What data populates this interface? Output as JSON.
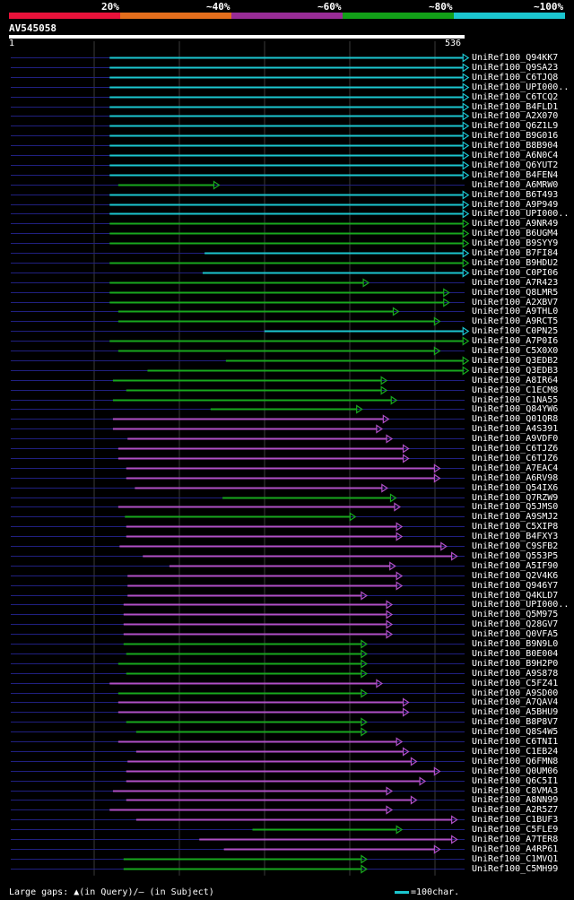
{
  "legend": {
    "segments": [
      {
        "label": "20%",
        "color": "#e8123a"
      },
      {
        "label": "~40%",
        "color": "#e46e1c"
      },
      {
        "label": "~60%",
        "color": "#982c96"
      },
      {
        "label": "~80%",
        "color": "#12a018"
      },
      {
        "label": "~100%",
        "color": "#1bc6cf"
      }
    ]
  },
  "query": {
    "name": "AV545058",
    "start": "1",
    "end": "536",
    "length": 536
  },
  "footer": {
    "gaps_text": "Large gaps: ▲(in Query)/— (in Subject)",
    "scale_text": "=100char."
  },
  "colors": {
    "cyan": "#1bc6cf",
    "green": "#18a81e",
    "purple": "#b04fc6",
    "line": "#202080",
    "grid": "#3a3a3a"
  },
  "hits": [
    {
      "name": "UniRef100_Q94KK7",
      "color": "cyan",
      "start": 165,
      "end": 705
    },
    {
      "name": "UniRef100_Q9SA23",
      "color": "cyan",
      "start": 165,
      "end": 705
    },
    {
      "name": "UniRef100_C6TJQ8",
      "color": "cyan",
      "start": 165,
      "end": 705
    },
    {
      "name": "UniRef100_UPI000..",
      "color": "cyan",
      "start": 165,
      "end": 705
    },
    {
      "name": "UniRef100_C6TCQ2",
      "color": "cyan",
      "start": 165,
      "end": 705
    },
    {
      "name": "UniRef100_B4FLD1",
      "color": "cyan",
      "start": 165,
      "end": 705
    },
    {
      "name": "UniRef100_A2X070",
      "color": "cyan",
      "start": 165,
      "end": 705
    },
    {
      "name": "UniRef100_Q6Z1L9",
      "color": "cyan",
      "start": 165,
      "end": 705
    },
    {
      "name": "UniRef100_B9G016",
      "color": "cyan",
      "start": 165,
      "end": 705
    },
    {
      "name": "UniRef100_B8B904",
      "color": "cyan",
      "start": 165,
      "end": 705
    },
    {
      "name": "UniRef100_A6N0C4",
      "color": "cyan",
      "start": 165,
      "end": 705
    },
    {
      "name": "UniRef100_Q6YUT2",
      "color": "cyan",
      "start": 165,
      "end": 705
    },
    {
      "name": "UniRef100_B4FEN4",
      "color": "cyan",
      "start": 165,
      "end": 705
    },
    {
      "name": "UniRef100_A6MRW0",
      "color": "green",
      "start": 178,
      "end": 330
    },
    {
      "name": "UniRef100_B6T493",
      "color": "cyan",
      "start": 165,
      "end": 705
    },
    {
      "name": "UniRef100_A9P949",
      "color": "cyan",
      "start": 165,
      "end": 705
    },
    {
      "name": "UniRef100_UPI000..",
      "color": "cyan",
      "start": 165,
      "end": 705
    },
    {
      "name": "UniRef100_A9NR49",
      "color": "green",
      "start": 165,
      "end": 705
    },
    {
      "name": "UniRef100_B6UGM4",
      "color": "green",
      "start": 165,
      "end": 705
    },
    {
      "name": "UniRef100_B9SYY9",
      "color": "green",
      "start": 165,
      "end": 705
    },
    {
      "name": "UniRef100_B7FI84",
      "color": "cyan",
      "start": 308,
      "end": 705
    },
    {
      "name": "UniRef100_B9HDU2",
      "color": "green",
      "start": 165,
      "end": 705
    },
    {
      "name": "UniRef100_C0PI06",
      "color": "cyan",
      "start": 305,
      "end": 705
    },
    {
      "name": "UniRef100_A7R423",
      "color": "green",
      "start": 165,
      "end": 555
    },
    {
      "name": "UniRef100_Q8LMR5",
      "color": "green",
      "start": 165,
      "end": 676
    },
    {
      "name": "UniRef100_A2XBV7",
      "color": "green",
      "start": 165,
      "end": 676
    },
    {
      "name": "UniRef100_A9THL0",
      "color": "green",
      "start": 178,
      "end": 600
    },
    {
      "name": "UniRef100_A9RCT5",
      "color": "green",
      "start": 178,
      "end": 662
    },
    {
      "name": "UniRef100_C0PN25",
      "color": "cyan",
      "start": 398,
      "end": 705
    },
    {
      "name": "UniRef100_A7P0I6",
      "color": "green",
      "start": 165,
      "end": 705
    },
    {
      "name": "UniRef100_C5X0X0",
      "color": "green",
      "start": 178,
      "end": 662
    },
    {
      "name": "UniRef100_Q3EDB2",
      "color": "green",
      "start": 340,
      "end": 705
    },
    {
      "name": "UniRef100_Q3EDB3",
      "color": "green",
      "start": 222,
      "end": 705
    },
    {
      "name": "UniRef100_A8IR64",
      "color": "green",
      "start": 170,
      "end": 582
    },
    {
      "name": "UniRef100_C1ECM8",
      "color": "green",
      "start": 190,
      "end": 582
    },
    {
      "name": "UniRef100_C1NA55",
      "color": "green",
      "start": 170,
      "end": 597
    },
    {
      "name": "UniRef100_Q84YW6",
      "color": "green",
      "start": 317,
      "end": 545
    },
    {
      "name": "UniRef100_Q01QR8",
      "color": "purple",
      "start": 170,
      "end": 585
    },
    {
      "name": "UniRef100_A4S391",
      "color": "purple",
      "start": 170,
      "end": 575
    },
    {
      "name": "UniRef100_A9VDF0",
      "color": "purple",
      "start": 192,
      "end": 590
    },
    {
      "name": "UniRef100_C6TJZ6",
      "color": "purple",
      "start": 178,
      "end": 615
    },
    {
      "name": "UniRef100_C6TJZ6",
      "color": "purple",
      "start": 178,
      "end": 615
    },
    {
      "name": "UniRef100_A7EAC4",
      "color": "purple",
      "start": 190,
      "end": 662
    },
    {
      "name": "UniRef100_A6RV98",
      "color": "purple",
      "start": 190,
      "end": 662
    },
    {
      "name": "UniRef100_Q54IX6",
      "color": "purple",
      "start": 203,
      "end": 583
    },
    {
      "name": "UniRef100_Q7RZW9",
      "color": "green",
      "start": 335,
      "end": 596
    },
    {
      "name": "UniRef100_Q5JMS0",
      "color": "purple",
      "start": 178,
      "end": 602
    },
    {
      "name": "UniRef100_A9SMJ2",
      "color": "green",
      "start": 188,
      "end": 535
    },
    {
      "name": "UniRef100_C5XIP8",
      "color": "purple",
      "start": 190,
      "end": 605
    },
    {
      "name": "UniRef100_B4FXY3",
      "color": "purple",
      "start": 190,
      "end": 605
    },
    {
      "name": "UniRef100_C9SFB2",
      "color": "purple",
      "start": 180,
      "end": 672
    },
    {
      "name": "UniRef100_Q553P5",
      "color": "purple",
      "start": 215,
      "end": 688
    },
    {
      "name": "UniRef100_A5IF90",
      "color": "purple",
      "start": 255,
      "end": 595
    },
    {
      "name": "UniRef100_Q2V4K6",
      "color": "purple",
      "start": 192,
      "end": 605
    },
    {
      "name": "UniRef100_Q946Y7",
      "color": "purple",
      "start": 192,
      "end": 605
    },
    {
      "name": "UniRef100_Q4KLD7",
      "color": "purple",
      "start": 192,
      "end": 552
    },
    {
      "name": "UniRef100_UPI000..",
      "color": "purple",
      "start": 186,
      "end": 590
    },
    {
      "name": "UniRef100_Q5M975",
      "color": "purple",
      "start": 186,
      "end": 590
    },
    {
      "name": "UniRef100_Q28GV7",
      "color": "purple",
      "start": 186,
      "end": 590
    },
    {
      "name": "UniRef100_Q0VFA5",
      "color": "purple",
      "start": 186,
      "end": 590
    },
    {
      "name": "UniRef100_B9N9L0",
      "color": "green",
      "start": 186,
      "end": 552
    },
    {
      "name": "UniRef100_B0E004",
      "color": "green",
      "start": 190,
      "end": 552
    },
    {
      "name": "UniRef100_B9H2P0",
      "color": "green",
      "start": 178,
      "end": 552
    },
    {
      "name": "UniRef100_A9S878",
      "color": "green",
      "start": 190,
      "end": 552
    },
    {
      "name": "UniRef100_C5FZ41",
      "color": "purple",
      "start": 165,
      "end": 575
    },
    {
      "name": "UniRef100_A9SD00",
      "color": "green",
      "start": 178,
      "end": 552
    },
    {
      "name": "UniRef100_A7QAV4",
      "color": "purple",
      "start": 178,
      "end": 615
    },
    {
      "name": "UniRef100_A5BHU9",
      "color": "purple",
      "start": 178,
      "end": 615
    },
    {
      "name": "UniRef100_B8P8V7",
      "color": "green",
      "start": 190,
      "end": 552
    },
    {
      "name": "UniRef100_Q8S4W5",
      "color": "green",
      "start": 205,
      "end": 552
    },
    {
      "name": "UniRef100_C6TNI1",
      "color": "purple",
      "start": 178,
      "end": 605
    },
    {
      "name": "UniRef100_C1EB24",
      "color": "purple",
      "start": 205,
      "end": 615
    },
    {
      "name": "UniRef100_Q6FMN8",
      "color": "purple",
      "start": 192,
      "end": 627
    },
    {
      "name": "UniRef100_Q0UM06",
      "color": "purple",
      "start": 190,
      "end": 662
    },
    {
      "name": "UniRef100_Q6C5I1",
      "color": "purple",
      "start": 190,
      "end": 640
    },
    {
      "name": "UniRef100_C8VMA3",
      "color": "purple",
      "start": 170,
      "end": 590
    },
    {
      "name": "UniRef100_A8NN99",
      "color": "purple",
      "start": 190,
      "end": 627
    },
    {
      "name": "UniRef100_A2R5Z7",
      "color": "purple",
      "start": 165,
      "end": 590
    },
    {
      "name": "UniRef100_C1BUF3",
      "color": "purple",
      "start": 205,
      "end": 688
    },
    {
      "name": "UniRef100_C5FLE9",
      "color": "green",
      "start": 380,
      "end": 605
    },
    {
      "name": "UniRef100_A7TER8",
      "color": "purple",
      "start": 300,
      "end": 688
    },
    {
      "name": "UniRef100_A4RP61",
      "color": "purple",
      "start": 337,
      "end": 662
    },
    {
      "name": "UniRef100_C1MVQ1",
      "color": "green",
      "start": 186,
      "end": 552
    },
    {
      "name": "UniRef100_C5MH99",
      "color": "green",
      "start": 186,
      "end": 552
    }
  ]
}
